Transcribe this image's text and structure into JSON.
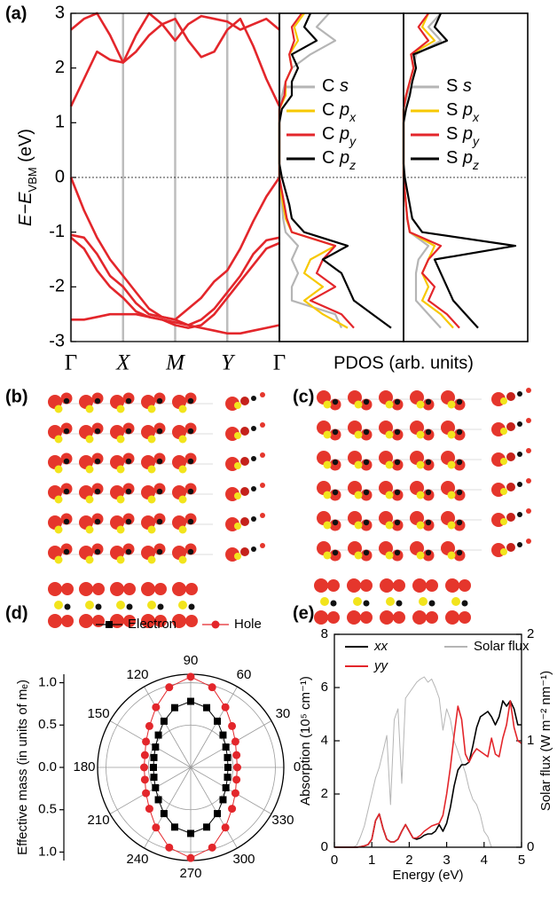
{
  "panels": [
    "(a)",
    "(b)",
    "(c)",
    "(d)",
    "(e)"
  ],
  "chart_data": [
    {
      "type": "line",
      "ylabel": "E−EVBM (eV)",
      "x": [
        0,
        0.25,
        0.5,
        0.75,
        1,
        1.25,
        1.5,
        1.75,
        2,
        2.25,
        2.5,
        2.75,
        3,
        3.25,
        3.5,
        3.75,
        4
      ],
      "xlim": [
        0,
        4
      ],
      "xticks": [
        {
          "value": 0,
          "label": "Γ"
        },
        {
          "value": 1,
          "label": "X"
        },
        {
          "value": 2,
          "label": "M"
        },
        {
          "value": 3,
          "label": "Y"
        },
        {
          "value": 4,
          "label": "Γ"
        }
      ],
      "ylim": [
        -3,
        3
      ],
      "yticks": [
        -3,
        -2,
        -1,
        0,
        1,
        2,
        3
      ],
      "vgrid": true,
      "zero_line": true,
      "series": [
        {
          "color": "#e3262b",
          "values": [
            1.3,
            1.8,
            2.3,
            2.15,
            2.1,
            2.3,
            2.6,
            2.8,
            2.9,
            2.5,
            2.2,
            2.3,
            2.7,
            2.9,
            2.4,
            1.8,
            1.3
          ]
        },
        {
          "color": "#e3262b",
          "values": [
            2.7,
            2.9,
            3.0,
            2.6,
            2.1,
            2.6,
            3.0,
            2.8,
            2.5,
            2.8,
            2.95,
            2.9,
            2.85,
            2.7,
            2.8,
            2.9,
            2.7
          ]
        },
        {
          "color": "#e3262b",
          "values": [
            0,
            -0.6,
            -1.1,
            -1.5,
            -1.8,
            -2.1,
            -2.4,
            -2.55,
            -2.6,
            -2.4,
            -2.2,
            -1.9,
            -1.7,
            -1.3,
            -0.8,
            -0.35,
            0
          ]
        },
        {
          "color": "#e3262b",
          "values": [
            -1.05,
            -1.1,
            -1.4,
            -1.8,
            -2.0,
            -2.3,
            -2.5,
            -2.55,
            -2.6,
            -2.7,
            -2.6,
            -2.4,
            -2.1,
            -1.8,
            -1.4,
            -1.15,
            -1.1
          ]
        },
        {
          "color": "#e3262b",
          "values": [
            -1.1,
            -1.3,
            -1.7,
            -2.0,
            -2.2,
            -2.45,
            -2.55,
            -2.6,
            -2.7,
            -2.75,
            -2.7,
            -2.5,
            -2.2,
            -1.9,
            -1.6,
            -1.3,
            -1.2
          ]
        },
        {
          "color": "#e3262b",
          "values": [
            -2.6,
            -2.6,
            -2.55,
            -2.5,
            -2.5,
            -2.5,
            -2.55,
            -2.6,
            -2.65,
            -2.7,
            -2.75,
            -2.8,
            -2.85,
            -2.85,
            -2.8,
            -2.75,
            -2.7
          ]
        }
      ]
    },
    {
      "type": "pdos",
      "xlabel": "PDOS (arb. units)",
      "energy": [
        -2.75,
        -2.5,
        -2.25,
        -2,
        -1.75,
        -1.5,
        -1.25,
        -1,
        -0.75,
        -0.5,
        -0.25,
        0,
        0.25,
        0.5,
        0.75,
        1,
        1.25,
        1.5,
        1.75,
        2,
        2.25,
        2.5,
        2.75,
        3
      ],
      "xlim": [
        0,
        1
      ],
      "ylim": [
        -3,
        3
      ],
      "zero_line": true,
      "series": [
        {
          "name": "C s",
          "color": "#b5b5b5",
          "values": [
            0.5,
            0.45,
            0.1,
            0.1,
            0.15,
            0.1,
            0.15,
            0.05,
            0.03,
            0.02,
            0.01,
            0,
            0,
            0,
            0,
            0,
            0,
            0.02,
            0.05,
            0.1,
            0.25,
            0.45,
            0.3,
            0.4
          ]
        },
        {
          "name": "C px",
          "color": "#f7c800",
          "values": [
            0.55,
            0.35,
            0.2,
            0.35,
            0.2,
            0.25,
            0.45,
            0.1,
            0.05,
            0.03,
            0.01,
            0,
            0,
            0,
            0,
            0,
            0,
            0.05,
            0.05,
            0.1,
            0.08,
            0.15,
            0.12,
            0.2
          ]
        },
        {
          "name": "C py",
          "color": "#e3262b",
          "values": [
            0.6,
            0.5,
            0.25,
            0.45,
            0.3,
            0.35,
            0.45,
            0.1,
            0.06,
            0.04,
            0.02,
            0,
            0,
            0,
            0,
            0,
            0,
            0.04,
            0.05,
            0.1,
            0.08,
            0.12,
            0.1,
            0.18
          ]
        },
        {
          "name": "C pz",
          "color": "#000000",
          "values": [
            0.9,
            0.75,
            0.6,
            0.55,
            0.5,
            0.35,
            0.55,
            0.2,
            0.1,
            0.08,
            0.05,
            0.02,
            0,
            0,
            0,
            0,
            0.02,
            0.1,
            0.1,
            0.15,
            0.1,
            0.3,
            0.2,
            0.25
          ]
        }
      ]
    },
    {
      "type": "pdos",
      "energy": [
        -2.75,
        -2.5,
        -2.25,
        -2,
        -1.75,
        -1.5,
        -1.25,
        -1,
        -0.75,
        -0.5,
        -0.25,
        0,
        0.25,
        0.5,
        0.75,
        1,
        1.25,
        1.5,
        1.75,
        2,
        2.25,
        2.5,
        2.75,
        3
      ],
      "xlim": [
        0,
        1
      ],
      "ylim": [
        -3,
        3
      ],
      "zero_line": true,
      "series": [
        {
          "name": "S s",
          "color": "#b5b5b5",
          "values": [
            0.3,
            0.2,
            0.1,
            0.1,
            0.1,
            0.12,
            0.2,
            0.05,
            0.03,
            0.02,
            0.01,
            0,
            0,
            0,
            0,
            0,
            0,
            0.03,
            0.05,
            0.08,
            0.1,
            0.3,
            0.2,
            0.3
          ]
        },
        {
          "name": "S px",
          "color": "#f7c800",
          "values": [
            0.4,
            0.3,
            0.15,
            0.2,
            0.15,
            0.2,
            0.25,
            0.05,
            0.03,
            0.02,
            0.01,
            0,
            0,
            0,
            0,
            0,
            0,
            0.02,
            0.05,
            0.08,
            0.06,
            0.25,
            0.15,
            0.2
          ]
        },
        {
          "name": "S py",
          "color": "#e3262b",
          "values": [
            0.45,
            0.35,
            0.2,
            0.25,
            0.15,
            0.2,
            0.3,
            0.05,
            0.03,
            0.02,
            0.01,
            0,
            0,
            0,
            0,
            0,
            0,
            0.02,
            0.05,
            0.08,
            0.06,
            0.2,
            0.12,
            0.2
          ]
        },
        {
          "name": "S pz",
          "color": "#000000",
          "values": [
            0.6,
            0.5,
            0.4,
            0.35,
            0.3,
            0.25,
            0.9,
            0.15,
            0.07,
            0.05,
            0.03,
            0.01,
            0,
            0,
            0,
            0,
            0.02,
            0.05,
            0.07,
            0.1,
            0.08,
            0.35,
            0.25,
            0.3
          ]
        }
      ]
    },
    {
      "type": "polar",
      "ylabel": "Effective mass (in units of mₑ)",
      "theta": [
        0,
        15,
        30,
        45,
        60,
        75,
        90,
        105,
        120,
        135,
        150,
        165,
        180,
        195,
        210,
        225,
        240,
        255,
        270,
        285,
        300,
        315,
        330,
        345
      ],
      "rlim": [
        0,
        1.1
      ],
      "rticks": [
        {
          "value": 1,
          "label": "1.0"
        },
        {
          "value": 0.5,
          "label": "0.5"
        },
        {
          "value": 0,
          "label": "0.0"
        }
      ],
      "angle_ticks": [
        0,
        30,
        60,
        90,
        120,
        150,
        180,
        210,
        240,
        270,
        300,
        330
      ],
      "series": [
        {
          "name": "Electron",
          "color": "#000000",
          "marker": "square",
          "values": [
            0.44,
            0.45,
            0.48,
            0.54,
            0.63,
            0.73,
            0.78,
            0.73,
            0.63,
            0.54,
            0.48,
            0.45,
            0.44,
            0.45,
            0.48,
            0.54,
            0.63,
            0.73,
            0.78,
            0.73,
            0.63,
            0.54,
            0.48,
            0.45
          ]
        },
        {
          "name": "Hole",
          "color": "#e3262b",
          "marker": "circle",
          "values": [
            0.55,
            0.56,
            0.61,
            0.69,
            0.82,
            0.98,
            1.07,
            0.98,
            0.82,
            0.69,
            0.61,
            0.56,
            0.55,
            0.56,
            0.61,
            0.69,
            0.82,
            0.98,
            1.07,
            0.98,
            0.82,
            0.69,
            0.61,
            0.56
          ]
        }
      ]
    },
    {
      "type": "line",
      "xlabel": "Energy (eV)",
      "ylabel": "Absorption (10⁵ cm⁻¹)",
      "y2label": "Solar flux (W m⁻² nm⁻¹)",
      "x": [
        0,
        0.1,
        0.2,
        0.3,
        0.4,
        0.5,
        0.6,
        0.7,
        0.8,
        0.9,
        1,
        1.1,
        1.2,
        1.3,
        1.4,
        1.5,
        1.6,
        1.7,
        1.8,
        1.9,
        2,
        2.1,
        2.2,
        2.3,
        2.4,
        2.5,
        2.6,
        2.7,
        2.8,
        2.9,
        3,
        3.1,
        3.2,
        3.3,
        3.4,
        3.5,
        3.6,
        3.7,
        3.8,
        3.9,
        4,
        4.1,
        4.2,
        4.3,
        4.4,
        4.5,
        4.6,
        4.7,
        4.8,
        4.9,
        5
      ],
      "xlim": [
        0,
        5
      ],
      "xticks": [
        0,
        1,
        2,
        3,
        4,
        5
      ],
      "ylim": [
        0,
        8
      ],
      "yticks": [
        0,
        2,
        4,
        6,
        8
      ],
      "y2lim": [
        0,
        2
      ],
      "y2ticks": [
        0,
        1,
        2
      ],
      "legend": "upper left",
      "series": [
        {
          "name": "xx",
          "color": "#000000",
          "values": [
            0,
            0,
            0,
            0,
            0,
            0,
            0,
            0.02,
            0.05,
            0.1,
            0.3,
            1.0,
            1.25,
            0.7,
            0.3,
            0.2,
            0.2,
            0.3,
            0.6,
            0.85,
            0.6,
            0.35,
            0.3,
            0.35,
            0.45,
            0.5,
            0.5,
            0.6,
            0.85,
            0.6,
            0.9,
            1.5,
            2.3,
            2.9,
            3.1,
            3.1,
            3.2,
            3.8,
            4.5,
            4.9,
            5.0,
            5.1,
            4.9,
            4.6,
            4.9,
            5.5,
            5.3,
            5.5,
            5.2,
            4.6,
            4.6
          ]
        },
        {
          "name": "yy",
          "color": "#e3262b",
          "values": [
            0,
            0,
            0,
            0,
            0,
            0,
            0,
            0.02,
            0.05,
            0.1,
            0.3,
            1.0,
            1.25,
            0.7,
            0.3,
            0.2,
            0.2,
            0.3,
            0.6,
            0.85,
            0.6,
            0.35,
            0.35,
            0.45,
            0.6,
            0.7,
            0.8,
            0.85,
            0.9,
            1.2,
            2.0,
            3.0,
            4.2,
            5.3,
            4.8,
            3.5,
            3.2,
            3.5,
            3.7,
            3.6,
            3.5,
            3.4,
            4.1,
            3.5,
            3.4,
            4.1,
            4.6,
            5.5,
            4.5,
            4.0,
            3.9
          ]
        },
        {
          "name": "Solar flux",
          "color": "#b5b5b5",
          "axis": "y2",
          "x": [
            0.5,
            0.6,
            0.7,
            0.8,
            0.9,
            1,
            1.1,
            1.2,
            1.3,
            1.4,
            1.5,
            1.6,
            1.7,
            1.8,
            1.9,
            2,
            2.1,
            2.2,
            2.3,
            2.4,
            2.5,
            2.6,
            2.7,
            2.8,
            2.9,
            3,
            3.1,
            3.2,
            3.3,
            3.4,
            3.5,
            3.6,
            3.7,
            3.8,
            3.9,
            4,
            4.1,
            4.2
          ],
          "values": [
            0,
            0.02,
            0.1,
            0.2,
            0.35,
            0.5,
            0.65,
            0.75,
            0.9,
            1.05,
            0.4,
            1.2,
            1.3,
            0.6,
            1.4,
            1.45,
            1.5,
            1.55,
            1.58,
            1.6,
            1.55,
            1.58,
            1.5,
            1.4,
            1.1,
            1.3,
            1.2,
            1.0,
            0.9,
            0.8,
            0.7,
            0.55,
            0.45,
            0.4,
            0.3,
            0.15,
            0.1,
            0
          ]
        }
      ]
    }
  ]
}
